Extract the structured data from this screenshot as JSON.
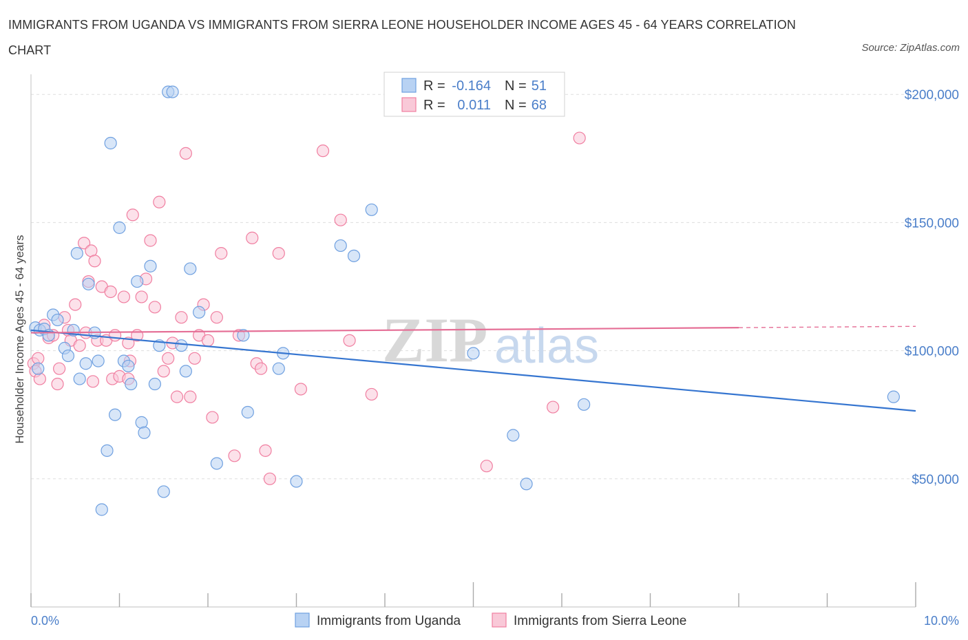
{
  "header": {
    "title": "IMMIGRANTS FROM UGANDA VS IMMIGRANTS FROM SIERRA LEONE HOUSEHOLDER INCOME AGES 45 - 64 YEARS CORRELATION CHART",
    "source": "Source: ZipAtlas.com"
  },
  "watermark": {
    "zip": "ZIP",
    "atlas": "atlas"
  },
  "colors": {
    "uganda": "#6fa0e0",
    "uganda_line": "#3575d0",
    "sierra": "#f07ea0",
    "sierra_line": "#e56f96",
    "tick_text": "#4a7ec9",
    "grid": "#dddddd"
  },
  "legend": {
    "rows": [
      {
        "r_label": "R =",
        "r_value": "-0.164",
        "n_label": "N =",
        "n_value": "51"
      },
      {
        "r_label": "R =",
        "r_value": "0.011",
        "n_label": "N =",
        "n_value": "68"
      }
    ]
  },
  "chart_data": {
    "type": "scatter",
    "ylabel": "Householder Income Ages 45 - 64 years",
    "xlim": [
      0,
      10
    ],
    "ylim": [
      0,
      210000
    ],
    "x_tick_labels": [
      "0.0%",
      "10.0%"
    ],
    "y_ticks": [
      {
        "value": 50000,
        "label": "$50,000"
      },
      {
        "value": 100000,
        "label": "$100,000"
      },
      {
        "value": 150000,
        "label": "$150,000"
      },
      {
        "value": 200000,
        "label": "$200,000"
      }
    ],
    "grid": true,
    "legend_position": "top-center",
    "series": [
      {
        "name": "Immigrants from Uganda",
        "points": [
          [
            0.05,
            109000
          ],
          [
            0.1,
            108000
          ],
          [
            0.15,
            108500
          ],
          [
            0.2,
            106000
          ],
          [
            0.25,
            114000
          ],
          [
            0.3,
            112000
          ],
          [
            0.38,
            101000
          ],
          [
            0.42,
            98000
          ],
          [
            0.48,
            108000
          ],
          [
            0.52,
            138000
          ],
          [
            0.55,
            89000
          ],
          [
            0.62,
            95000
          ],
          [
            0.65,
            126000
          ],
          [
            0.72,
            107000
          ],
          [
            0.76,
            96000
          ],
          [
            0.8,
            38000
          ],
          [
            0.86,
            61000
          ],
          [
            0.9,
            181000
          ],
          [
            0.95,
            75000
          ],
          [
            1.0,
            148000
          ],
          [
            1.05,
            96000
          ],
          [
            1.1,
            94000
          ],
          [
            1.13,
            87000
          ],
          [
            1.2,
            127000
          ],
          [
            1.25,
            72000
          ],
          [
            1.28,
            68000
          ],
          [
            1.35,
            133000
          ],
          [
            1.4,
            87000
          ],
          [
            1.45,
            102000
          ],
          [
            1.5,
            45000
          ],
          [
            1.55,
            201000
          ],
          [
            1.6,
            201000
          ],
          [
            1.7,
            102000
          ],
          [
            1.75,
            92000
          ],
          [
            1.8,
            132000
          ],
          [
            1.9,
            115000
          ],
          [
            2.1,
            56000
          ],
          [
            2.4,
            106000
          ],
          [
            2.45,
            76000
          ],
          [
            2.8,
            93000
          ],
          [
            2.85,
            99000
          ],
          [
            3.0,
            49000
          ],
          [
            3.5,
            141000
          ],
          [
            3.65,
            137000
          ],
          [
            3.85,
            155000
          ],
          [
            5.0,
            99000
          ],
          [
            5.45,
            67000
          ],
          [
            5.6,
            48000
          ],
          [
            6.25,
            79000
          ],
          [
            9.75,
            82000
          ],
          [
            0.08,
            93000
          ]
        ]
      },
      {
        "name": "Immigrants from Sierra Leone",
        "points": [
          [
            0.03,
            95000
          ],
          [
            0.05,
            92000
          ],
          [
            0.08,
            97000
          ],
          [
            0.1,
            89000
          ],
          [
            0.15,
            110000
          ],
          [
            0.2,
            105000
          ],
          [
            0.25,
            106000
          ],
          [
            0.3,
            87000
          ],
          [
            0.32,
            93000
          ],
          [
            0.38,
            113000
          ],
          [
            0.42,
            108000
          ],
          [
            0.45,
            104000
          ],
          [
            0.5,
            118000
          ],
          [
            0.55,
            102000
          ],
          [
            0.6,
            142000
          ],
          [
            0.62,
            107000
          ],
          [
            0.65,
            127000
          ],
          [
            0.68,
            139000
          ],
          [
            0.72,
            135000
          ],
          [
            0.75,
            104000
          ],
          [
            0.8,
            125000
          ],
          [
            0.85,
            104000
          ],
          [
            0.9,
            123000
          ],
          [
            0.92,
            89000
          ],
          [
            0.95,
            106000
          ],
          [
            1.0,
            90000
          ],
          [
            1.05,
            121000
          ],
          [
            1.1,
            103000
          ],
          [
            1.12,
            96000
          ],
          [
            1.15,
            153000
          ],
          [
            1.2,
            106000
          ],
          [
            1.25,
            121000
          ],
          [
            1.3,
            128000
          ],
          [
            1.35,
            143000
          ],
          [
            1.4,
            117000
          ],
          [
            1.45,
            158000
          ],
          [
            1.5,
            92000
          ],
          [
            1.55,
            97000
          ],
          [
            1.6,
            103000
          ],
          [
            1.65,
            82000
          ],
          [
            1.7,
            113000
          ],
          [
            1.75,
            177000
          ],
          [
            1.8,
            82000
          ],
          [
            1.85,
            97000
          ],
          [
            1.9,
            106000
          ],
          [
            1.95,
            118000
          ],
          [
            2.0,
            104000
          ],
          [
            2.05,
            74000
          ],
          [
            2.1,
            113000
          ],
          [
            2.15,
            138000
          ],
          [
            2.3,
            59000
          ],
          [
            2.35,
            106000
          ],
          [
            2.5,
            144000
          ],
          [
            2.55,
            95000
          ],
          [
            2.6,
            93000
          ],
          [
            2.65,
            61000
          ],
          [
            2.7,
            50000
          ],
          [
            2.8,
            138000
          ],
          [
            3.05,
            85000
          ],
          [
            3.3,
            178000
          ],
          [
            3.5,
            151000
          ],
          [
            3.6,
            104000
          ],
          [
            3.85,
            83000
          ],
          [
            5.15,
            55000
          ],
          [
            5.9,
            78000
          ],
          [
            6.2,
            183000
          ],
          [
            1.1,
            89000
          ],
          [
            0.7,
            88000
          ]
        ]
      }
    ],
    "trendlines": [
      {
        "series": "Immigrants from Uganda",
        "x": [
          0,
          10
        ],
        "y": [
          108000,
          76500
        ],
        "dashed_from_x": null
      },
      {
        "series": "Immigrants from Sierra Leone",
        "x": [
          0,
          10
        ],
        "y": [
          107000,
          109500
        ],
        "dashed_from_x": 8
      }
    ]
  }
}
